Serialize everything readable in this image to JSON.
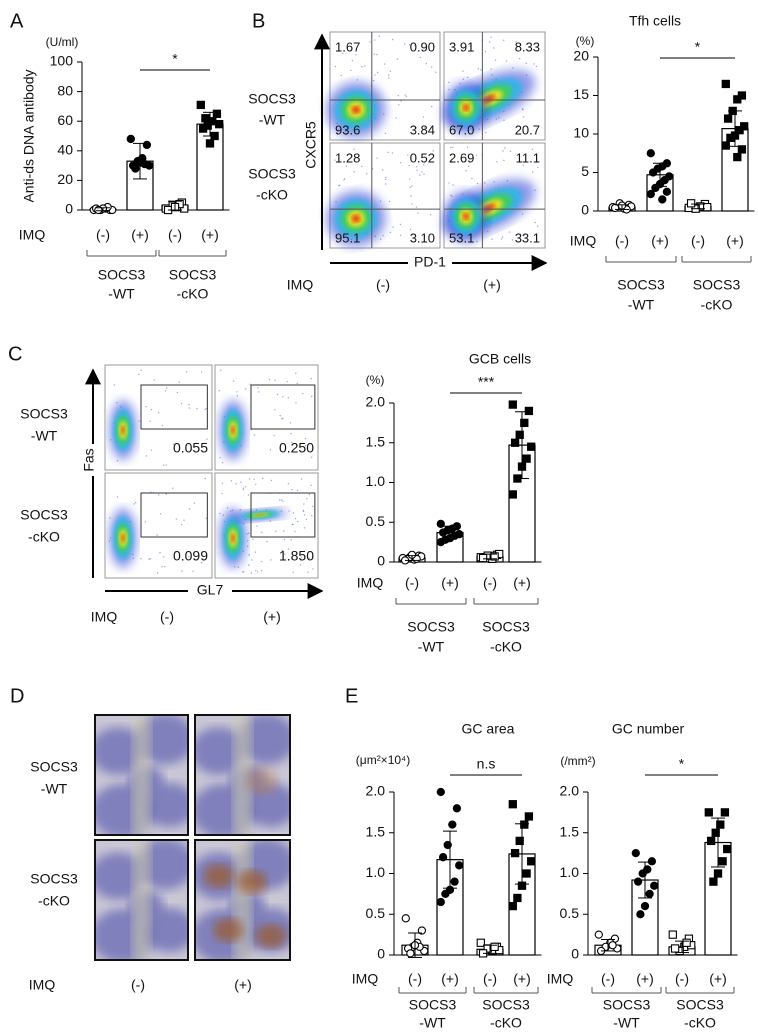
{
  "figure": {
    "panel_labels": [
      "A",
      "B",
      "C",
      "D",
      "E"
    ],
    "flow_B": {
      "y_axis": "CXCR5",
      "x_axis": "PD-1",
      "rows": [
        [
          "SOCS3",
          "-WT"
        ],
        [
          "SOCS3",
          "-cKO"
        ]
      ],
      "row_label": "IMQ",
      "columns": [
        "(-)",
        "(+)"
      ],
      "quadrants": [
        [
          "1.67",
          "0.90",
          "93.6",
          "3.84"
        ],
        [
          "3.91",
          "8.33",
          "67.0",
          "20.7"
        ],
        [
          "1.28",
          "0.52",
          "95.1",
          "3.10"
        ],
        [
          "2.69",
          "11.1",
          "53.1",
          "33.1"
        ]
      ]
    },
    "flow_C": {
      "y_axis": "Fas",
      "x_axis": "GL7",
      "rows": [
        [
          "SOCS3",
          "-WT"
        ],
        [
          "SOCS3",
          "-cKO"
        ]
      ],
      "row_label": "IMQ",
      "columns": [
        "(-)",
        "(+)"
      ],
      "gates": [
        "0.055",
        "0.250",
        "0.099",
        "1.850"
      ]
    },
    "histology_D": {
      "rows": [
        [
          "SOCS3",
          "-WT"
        ],
        [
          "SOCS3",
          "-cKO"
        ]
      ],
      "row_label": "IMQ",
      "columns": [
        "(-)",
        "(+)"
      ]
    }
  },
  "chart_data": [
    {
      "type": "bar",
      "unit": "(U/ml)",
      "ylabel": "Anti-ds DNA antibody",
      "row_label": "IMQ",
      "categories": [
        "(-)",
        "(+)",
        "(-)",
        "(+)"
      ],
      "groups": [
        [
          "SOCS3",
          "-WT"
        ],
        [
          "SOCS3",
          "-cKO"
        ]
      ],
      "values": [
        0.5,
        33,
        3,
        58
      ],
      "errors": [
        1,
        12,
        3,
        8
      ],
      "points": [
        [
          0,
          0,
          1,
          0,
          1,
          0,
          2,
          1,
          0
        ],
        [
          48,
          44,
          35,
          33,
          30,
          30,
          31,
          32,
          28
        ],
        [
          1,
          5,
          2,
          3,
          0,
          1,
          4,
          2
        ],
        [
          71,
          65,
          60,
          57,
          55,
          58,
          50,
          45,
          62
        ]
      ],
      "markers": [
        "open-circle",
        "circle",
        "open-square",
        "square"
      ],
      "color": "#ffffff",
      "edge_color": "#000000",
      "ylim": [
        0,
        100
      ],
      "yticks": [
        0,
        20,
        40,
        60,
        80,
        100
      ],
      "annotation": "*"
    },
    {
      "type": "bar",
      "title": "Tfh cells",
      "unit": "(%)",
      "row_label": "IMQ",
      "categories": [
        "(-)",
        "(+)",
        "(-)",
        "(+)"
      ],
      "groups": [
        [
          "SOCS3",
          "-WT"
        ],
        [
          "SOCS3",
          "-cKO"
        ]
      ],
      "values": [
        0.5,
        4.7,
        0.6,
        10.7
      ],
      "errors": [
        0.3,
        1.5,
        0.3,
        2.3
      ],
      "points": [
        [
          0.5,
          0.8,
          0.3,
          1,
          0.4,
          0.6,
          0.2,
          0.7
        ],
        [
          7.5,
          6.2,
          5.8,
          5.5,
          5,
          4.5,
          4,
          3.5,
          3,
          2.2,
          2.5,
          1.5
        ],
        [
          0.4,
          0.9,
          0.6,
          0.3,
          1,
          0.5
        ],
        [
          16.5,
          15,
          14.5,
          13,
          12,
          11,
          10.5,
          9.8,
          9.5,
          8.5,
          8,
          7
        ]
      ],
      "markers": [
        "open-circle",
        "circle",
        "open-square",
        "square"
      ],
      "color": "#ffffff",
      "edge_color": "#000000",
      "ylim": [
        0,
        20
      ],
      "yticks": [
        0,
        5,
        10,
        15,
        20
      ],
      "annotation": "*"
    },
    {
      "type": "bar",
      "title": "GCB cells",
      "unit": "(%)",
      "row_label": "IMQ",
      "categories": [
        "(-)",
        "(+)",
        "(-)",
        "(+)"
      ],
      "groups": [
        [
          "SOCS3",
          "-WT"
        ],
        [
          "SOCS3",
          "-cKO"
        ]
      ],
      "values": [
        0.05,
        0.37,
        0.07,
        1.47
      ],
      "errors": [
        0.03,
        0.08,
        0.03,
        0.42
      ],
      "points": [
        [
          0.05,
          0.08,
          0.03,
          0.06,
          0.02,
          0.07,
          0.04,
          0.09
        ],
        [
          0.48,
          0.45,
          0.42,
          0.4,
          0.37,
          0.35,
          0.33,
          0.3,
          0.28,
          0.25
        ],
        [
          0.06,
          0.09,
          0.04,
          0.08,
          0.05,
          0.1,
          0.07
        ],
        [
          1.98,
          1.9,
          1.75,
          1.6,
          1.5,
          1.45,
          1.3,
          1.2,
          1.05,
          0.85
        ]
      ],
      "markers": [
        "open-circle",
        "circle",
        "open-square",
        "square"
      ],
      "color": "#ffffff",
      "edge_color": "#000000",
      "ylim": [
        0,
        2
      ],
      "yticks": [
        0,
        0.5,
        {
          "value": 1,
          "label": "1.0"
        },
        1.5,
        {
          "value": 2,
          "label": "2.0"
        }
      ],
      "annotation": "***"
    },
    {
      "type": "bar",
      "title": "GC area",
      "unit": "(μm²×10⁴)",
      "row_label": "IMQ",
      "categories": [
        "(-)",
        "(+)",
        "(-)",
        "(+)"
      ],
      "groups": [
        [
          "SOCS3",
          "-WT"
        ],
        [
          "SOCS3",
          "-cKO"
        ]
      ],
      "values": [
        0.12,
        1.17,
        0.07,
        1.24
      ],
      "errors": [
        0.15,
        0.35,
        0.05,
        0.37
      ],
      "points": [
        [
          0.45,
          0.3,
          0.15,
          0.1,
          0.08,
          0.05,
          0.1,
          0.12,
          0.02
        ],
        [
          2.0,
          1.8,
          1.6,
          1.35,
          1.2,
          1.1,
          0.9,
          0.8,
          0.75,
          0.65
        ],
        [
          0.15,
          0.1,
          0.05,
          0.08,
          0.02,
          0.06,
          0.1
        ],
        [
          1.85,
          1.7,
          1.6,
          1.4,
          1.25,
          1.15,
          1.0,
          0.85,
          0.7,
          0.6
        ]
      ],
      "markers": [
        "open-circle",
        "circle",
        "open-square",
        "square"
      ],
      "color": "#ffffff",
      "edge_color": "#000000",
      "ylim": [
        0,
        2
      ],
      "yticks": [
        0,
        0.5,
        {
          "value": 1,
          "label": "1.0"
        },
        1.5,
        {
          "value": 2,
          "label": "2.0"
        }
      ],
      "annotation": "n.s"
    },
    {
      "type": "bar",
      "title": "GC number",
      "unit": "(/mm²)",
      "row_label": "IMQ",
      "categories": [
        "(-)",
        "(+)",
        "(-)",
        "(+)"
      ],
      "groups": [
        [
          "SOCS3",
          "-WT"
        ],
        [
          "SOCS3",
          "-cKO"
        ]
      ],
      "values": [
        0.12,
        0.92,
        0.1,
        1.38
      ],
      "errors": [
        0.07,
        0.22,
        0.07,
        0.3
      ],
      "points": [
        [
          0.25,
          0.2,
          0.15,
          0.1,
          0.05,
          0.08,
          0.12
        ],
        [
          1.25,
          1.15,
          1.05,
          1.0,
          0.9,
          0.85,
          0.75,
          0.6,
          0.5
        ],
        [
          0.25,
          0.2,
          0.1,
          0.05,
          0.08,
          0.12,
          0.15
        ],
        [
          1.75,
          1.75,
          1.6,
          1.5,
          1.4,
          1.3,
          1.15,
          1.0,
          0.9
        ]
      ],
      "markers": [
        "open-circle",
        "circle",
        "open-square",
        "square"
      ],
      "color": "#ffffff",
      "edge_color": "#000000",
      "ylim": [
        0,
        2
      ],
      "yticks": [
        0,
        0.5,
        {
          "value": 1,
          "label": "1.0"
        },
        1.5,
        {
          "value": 2,
          "label": "2.0"
        }
      ],
      "annotation": "*"
    }
  ]
}
